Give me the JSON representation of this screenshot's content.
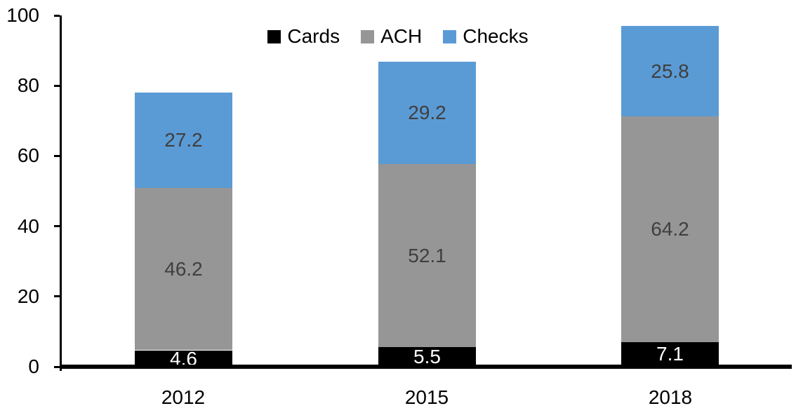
{
  "chart_data": {
    "type": "bar",
    "stacked": true,
    "title": "",
    "categories": [
      "2012",
      "2015",
      "2018"
    ],
    "series": [
      {
        "name": "Cards",
        "color": "#000000",
        "label_color": "#ffffff",
        "values": [
          4.6,
          5.5,
          7.1
        ]
      },
      {
        "name": "ACH",
        "color": "#969696",
        "label_color": "#3f3f3f",
        "values": [
          46.2,
          52.1,
          64.2
        ]
      },
      {
        "name": "Checks",
        "color": "#5b9bd5",
        "label_color": "#3f3f3f",
        "values": [
          27.2,
          29.2,
          25.8
        ]
      }
    ],
    "totals": [
      78.0,
      86.8,
      97.1
    ],
    "xlabel": "",
    "ylabel": "",
    "ylim": [
      0,
      100
    ],
    "yticks": [
      0,
      20,
      40,
      60,
      80,
      100
    ],
    "grid": false,
    "legend_position": "top-center",
    "axis_color": "#000000",
    "background_color": "#ffffff"
  }
}
